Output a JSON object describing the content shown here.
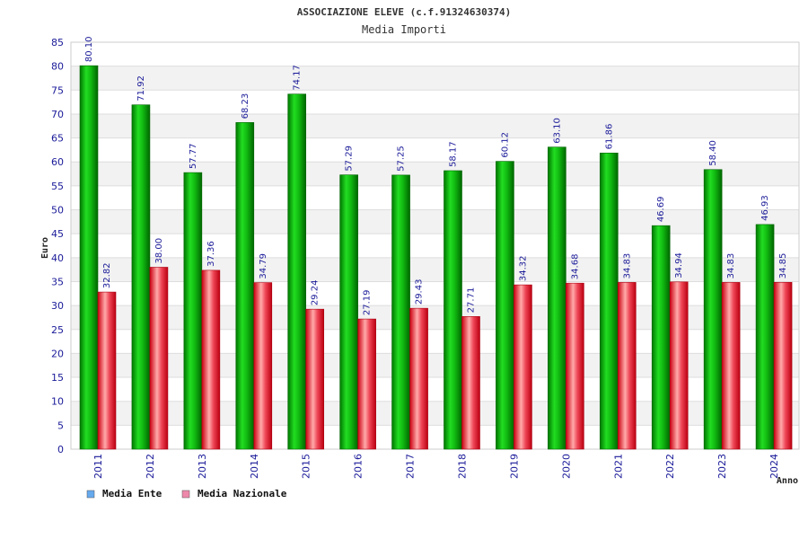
{
  "chart_data": {
    "type": "bar",
    "title": "ASSOCIAZIONE ELEVE (c.f.91324630374)",
    "subtitle": "Media Importi",
    "xlabel": "Anno",
    "ylabel": "Euro",
    "ylim": [
      0,
      85
    ],
    "yticks": [
      "0",
      "5",
      "10",
      "15",
      "20",
      "25",
      "30",
      "35",
      "40",
      "45",
      "50",
      "55",
      "60",
      "65",
      "70",
      "75",
      "80",
      "85"
    ],
    "categories": [
      "2011",
      "2012",
      "2013",
      "2014",
      "2015",
      "2016",
      "2017",
      "2018",
      "2019",
      "2020",
      "2021",
      "2022",
      "2023",
      "2024"
    ],
    "series": [
      {
        "name": "Media Ente",
        "color": "#22bb22",
        "values": [
          80.1,
          71.92,
          57.77,
          68.23,
          74.17,
          57.29,
          57.25,
          58.17,
          60.12,
          63.1,
          61.86,
          46.69,
          58.4,
          46.93
        ],
        "labels": [
          "80.10",
          "71.92",
          "57.77",
          "68.23",
          "74.17",
          "57.29",
          "57.25",
          "58.17",
          "60.12",
          "63.10",
          "61.86",
          "46.69",
          "58.40",
          "46.93"
        ]
      },
      {
        "name": "Media Nazionale",
        "color": "#ee3344",
        "values": [
          32.82,
          38.0,
          37.36,
          34.79,
          29.24,
          27.19,
          29.43,
          27.71,
          34.32,
          34.68,
          34.83,
          34.94,
          34.83,
          34.85
        ],
        "labels": [
          "32.82",
          "38.00",
          "37.36",
          "34.79",
          "29.24",
          "27.19",
          "29.43",
          "27.71",
          "34.32",
          "34.68",
          "34.83",
          "34.94",
          "34.83",
          "34.85"
        ]
      }
    ],
    "legend": {
      "position": "bottom-left",
      "items": [
        {
          "label": "Media Ente",
          "swatch": "#66aaee"
        },
        {
          "label": "Media Nazionale",
          "swatch": "#ee88aa"
        }
      ]
    },
    "grid": true
  }
}
